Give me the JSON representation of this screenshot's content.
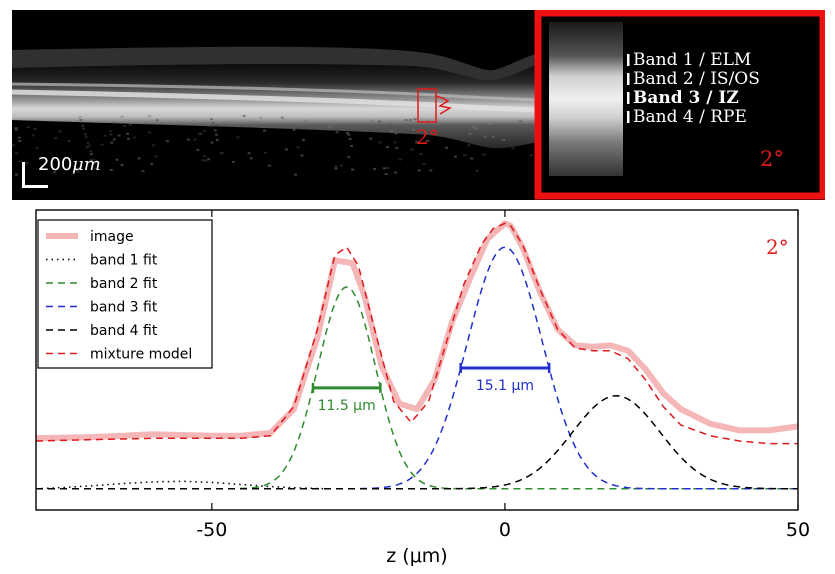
{
  "oct": {
    "scale_bar": {
      "value": "200",
      "unit": "μm"
    },
    "roi_label": "2°",
    "inset": {
      "label": "2°",
      "bands": [
        {
          "label": "Band 1 / ELM",
          "bold": false
        },
        {
          "label": "Band 2 / IS/OS",
          "bold": false
        },
        {
          "label": "Band 3 / IZ",
          "bold": true
        },
        {
          "label": "Band 4 / RPE",
          "bold": false
        }
      ]
    }
  },
  "chart_data": {
    "type": "line",
    "title": "",
    "annotation": "2°",
    "xlabel": "z (μm)",
    "ylabel": "",
    "xlim": [
      -80,
      50
    ],
    "ylim": [
      -0.08,
      1.05
    ],
    "xticks": [
      -50,
      0,
      50
    ],
    "grid": false,
    "legend_position": "top-left",
    "colors": {
      "image": "#f4b6b6",
      "band1": "#000000",
      "band2": "#2e8b2e",
      "band3": "#1f2fd0",
      "band4": "#000000",
      "mixture": "#e0191b"
    },
    "series": [
      {
        "name": "image",
        "style": "solid-thick",
        "x": [
          -80,
          -70,
          -60,
          -50,
          -45,
          -40,
          -36,
          -32,
          -29,
          -26,
          -24,
          -21,
          -18,
          -15,
          -12,
          -9,
          -6,
          -3,
          0,
          1,
          3,
          6,
          9,
          12,
          15,
          18,
          21,
          24,
          27,
          30,
          35,
          40,
          45,
          50
        ],
        "y": [
          0.19,
          0.195,
          0.205,
          0.2,
          0.2,
          0.21,
          0.3,
          0.57,
          0.86,
          0.85,
          0.73,
          0.46,
          0.32,
          0.3,
          0.41,
          0.63,
          0.79,
          0.94,
          1.0,
          0.99,
          0.91,
          0.74,
          0.6,
          0.54,
          0.535,
          0.54,
          0.52,
          0.45,
          0.36,
          0.3,
          0.245,
          0.22,
          0.22,
          0.235
        ]
      },
      {
        "name": "band 1 fit",
        "style": "dotted",
        "x": [
          -80,
          -75,
          -70,
          -65,
          -60,
          -55,
          -50,
          -45,
          -40,
          -35,
          -30
        ],
        "y": [
          0.0,
          0.005,
          0.012,
          0.02,
          0.026,
          0.028,
          0.024,
          0.016,
          0.008,
          0.003,
          0.0
        ]
      },
      {
        "name": "band 2 fit",
        "style": "dashed",
        "gaussian": {
          "amp": 0.76,
          "mu": -27,
          "sigma": 4.9
        },
        "fwhm_label": "11.5 μm",
        "fwhm": 11.5
      },
      {
        "name": "band 3 fit",
        "style": "dashed",
        "gaussian": {
          "amp": 0.91,
          "mu": 0,
          "sigma": 6.4
        },
        "fwhm_label": "15.1 μm",
        "fwhm": 15.1
      },
      {
        "name": "band 4 fit",
        "style": "dashed",
        "gaussian": {
          "amp": 0.35,
          "mu": 19,
          "sigma": 7.5
        }
      },
      {
        "name": "mixture model",
        "style": "dashed",
        "x": [
          -80,
          -70,
          -60,
          -50,
          -45,
          -40,
          -36,
          -32,
          -29,
          -27,
          -25,
          -22,
          -19,
          -16,
          -13,
          -10,
          -7,
          -4,
          -2,
          0,
          1,
          3,
          6,
          9,
          12,
          15,
          18,
          21,
          24,
          27,
          30,
          35,
          40,
          45,
          50
        ],
        "y": [
          0.18,
          0.185,
          0.19,
          0.19,
          0.19,
          0.2,
          0.31,
          0.6,
          0.88,
          0.91,
          0.84,
          0.58,
          0.33,
          0.25,
          0.33,
          0.55,
          0.77,
          0.92,
          0.98,
          1.0,
          0.99,
          0.92,
          0.75,
          0.6,
          0.53,
          0.52,
          0.52,
          0.49,
          0.41,
          0.31,
          0.24,
          0.2,
          0.18,
          0.17,
          0.17
        ]
      }
    ]
  }
}
